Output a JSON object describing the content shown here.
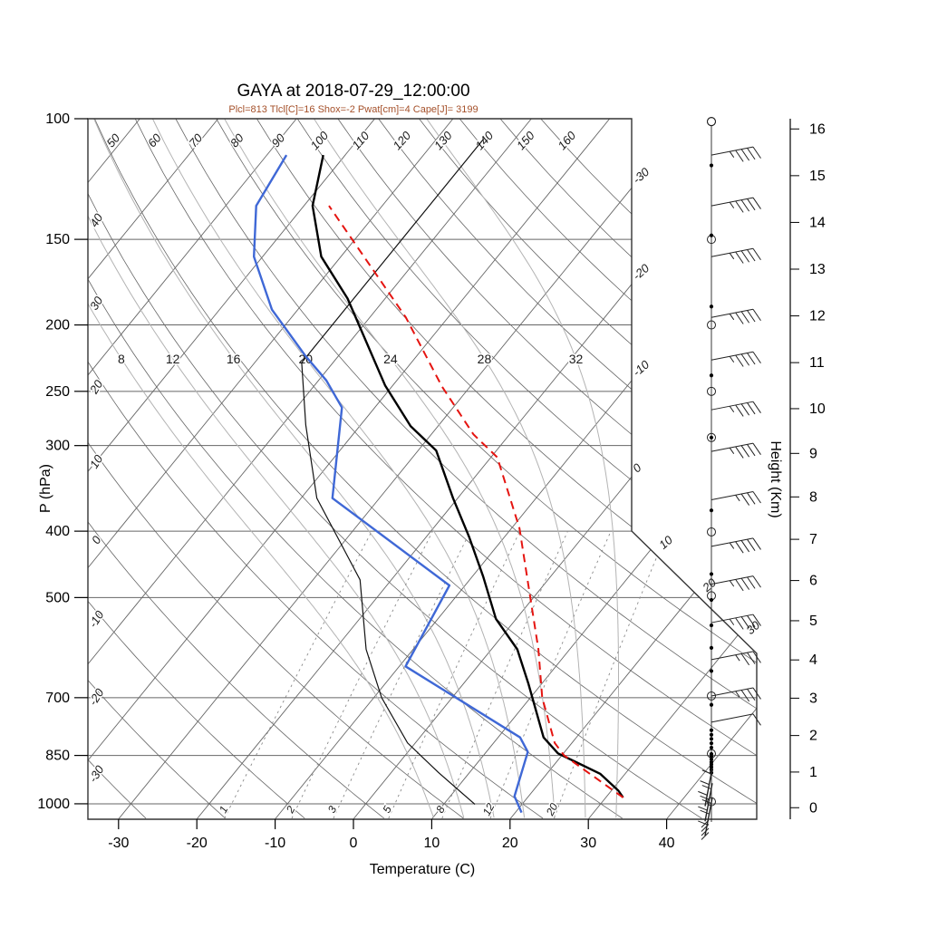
{
  "header": {
    "title": "GAYA at 2018-07-29_12:00:00",
    "info_line": "Plcl=813 Tlcl[C]=16 Shox=-2 Pwat[cm]=4 Cape[J]= 3199"
  },
  "axes": {
    "pressure": {
      "label": "P (hPa)",
      "ticks": [
        100,
        150,
        200,
        250,
        300,
        400,
        500,
        700,
        850,
        1000
      ]
    },
    "temperature": {
      "label": "Temperature (C)",
      "ticks": [
        -30,
        -20,
        -10,
        0,
        10,
        20,
        30,
        40
      ]
    },
    "height": {
      "label": "Height (Km)",
      "ticks": [
        0,
        1,
        2,
        3,
        4,
        5,
        6,
        7,
        8,
        9,
        10,
        11,
        12,
        13,
        14,
        15,
        16
      ]
    }
  },
  "background_labels": {
    "dry_adiabats_top": [
      50,
      60,
      70,
      80,
      90,
      100,
      110,
      120,
      130,
      140,
      150,
      160
    ],
    "dry_adiabats_left": [
      40,
      30,
      20,
      10,
      0,
      -10,
      -20,
      -30
    ],
    "isotherms_right_edge": [
      0,
      -10,
      -20,
      -30
    ],
    "isotherms_diagonal_edge": [
      10,
      20,
      30
    ],
    "moist_adiabats": [
      8,
      12,
      16,
      20,
      24,
      28,
      32
    ],
    "mixing_ratio": [
      1,
      2,
      3,
      5,
      8,
      12,
      20
    ]
  },
  "colors": {
    "temperature_curve": "#000000",
    "dewpoint_curve": "#3f68d6",
    "parcel_curve": "#e51410",
    "aux_curve": "#111111",
    "grid": "#666666",
    "moist_grid": "#b3b3b3",
    "mixing_grid": "#8a8a8a",
    "frame": "#333333",
    "info": "#a5512b"
  },
  "chart_data": {
    "type": "skewt-log-p",
    "title": "GAYA at 2018-07-29_12:00:00",
    "pressure_range_hpa": [
      100,
      1050
    ],
    "temperature_axis_range_c": [
      -35,
      45
    ],
    "sounding": {
      "temperature_p_t": [
        [
          979,
          32.2
        ],
        [
          957,
          30.9
        ],
        [
          904,
          26.8
        ],
        [
          844,
          19.3
        ],
        [
          800,
          15.8
        ],
        [
          668,
          8.3
        ],
        [
          595,
          3.3
        ],
        [
          537,
          -2.6
        ],
        [
          466,
          -8.6
        ],
        [
          408,
          -14.5
        ],
        [
          358,
          -20.6
        ],
        [
          305,
          -27.7
        ],
        [
          281,
          -33.5
        ],
        [
          245,
          -41
        ],
        [
          183,
          -54.8
        ],
        [
          159,
          -62.5
        ],
        [
          134,
          -68.9
        ],
        [
          113,
          -72.8
        ]
      ],
      "dewpoint_p_t": [
        [
          1030,
          20.8
        ],
        [
          975,
          18.2
        ],
        [
          840,
          15.3
        ],
        [
          800,
          12.8
        ],
        [
          630,
          -9.2
        ],
        [
          480,
          -12
        ],
        [
          358,
          -36
        ],
        [
          264,
          -44.2
        ],
        [
          241,
          -49
        ],
        [
          222,
          -54.2
        ],
        [
          190,
          -63.3
        ],
        [
          159,
          -71.1
        ],
        [
          134,
          -76.1
        ],
        [
          113,
          -77.5
        ]
      ],
      "parcel_p_t": [
        [
          979,
          32.2
        ],
        [
          850,
          20.3
        ],
        [
          815,
          17.8
        ],
        [
          700,
          11.5
        ],
        [
          595,
          6.0
        ],
        [
          396,
          -9.0
        ],
        [
          312,
          -19.2
        ],
        [
          289,
          -24.6
        ],
        [
          246,
          -33.6
        ],
        [
          195,
          -45.4
        ],
        [
          134,
          -66.8
        ]
      ],
      "aux_p_t": [
        [
          1002,
          14
        ],
        [
          900,
          6
        ],
        [
          815,
          -1
        ],
        [
          700,
          -9
        ],
        [
          595,
          -16
        ],
        [
          471,
          -24
        ],
        [
          358,
          -38
        ],
        [
          280,
          -47
        ],
        [
          227,
          -54
        ],
        [
          150,
          -54
        ],
        [
          107,
          -54
        ]
      ]
    },
    "wind_column": {
      "barbs_p_feathers": [
        [
          113,
          4
        ],
        [
          134,
          4
        ],
        [
          159,
          4
        ],
        [
          195,
          4
        ],
        [
          225,
          4
        ],
        [
          266,
          4
        ],
        [
          306,
          4
        ],
        [
          360,
          3
        ],
        [
          421,
          4
        ],
        [
          478,
          4
        ],
        [
          544,
          4
        ],
        [
          616,
          3
        ],
        [
          696,
          3
        ],
        [
          760,
          1
        ]
      ],
      "surface_barbs_p": [
        920,
        968,
        1016
      ],
      "dots_p": [
        117,
        148,
        188,
        237,
        292,
        373,
        462,
        504,
        549,
        592,
        640,
        717,
        781,
        793,
        804,
        816,
        828,
        846,
        853,
        861,
        869,
        876,
        884,
        892,
        901
      ],
      "circles_p": [
        101,
        150,
        200,
        250,
        292,
        401,
        497,
        696,
        845,
        993
      ]
    }
  }
}
